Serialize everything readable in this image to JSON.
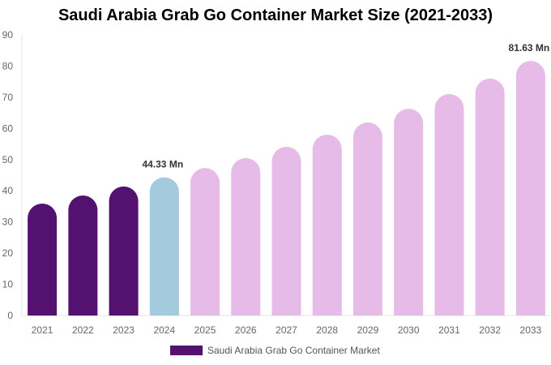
{
  "chart_data": {
    "type": "bar",
    "title": "Saudi Arabia Grab Go Container Market Size (2021-2033)",
    "categories": [
      "2021",
      "2022",
      "2023",
      "2024",
      "2025",
      "2026",
      "2027",
      "2028",
      "2029",
      "2030",
      "2031",
      "2032",
      "2033"
    ],
    "series": [
      {
        "name": "Saudi Arabia Grab Go Container Market",
        "values": [
          35.9,
          38.5,
          41.4,
          44.33,
          47.3,
          50.5,
          54.1,
          58.0,
          61.9,
          66.3,
          71.0,
          76.0,
          81.63
        ]
      }
    ],
    "data_labels": {
      "3": "44.33 Mn",
      "12": "81.63 Mn"
    },
    "ylim": [
      0,
      90
    ],
    "yticks": [
      0,
      10,
      20,
      30,
      40,
      50,
      60,
      70,
      80,
      90
    ],
    "grid": false,
    "legend_position": "bottom",
    "colors": {
      "historical": "#541270",
      "base_year": "#A3CADD",
      "forecast": "#E6BBE8",
      "legend": "#541270"
    }
  }
}
